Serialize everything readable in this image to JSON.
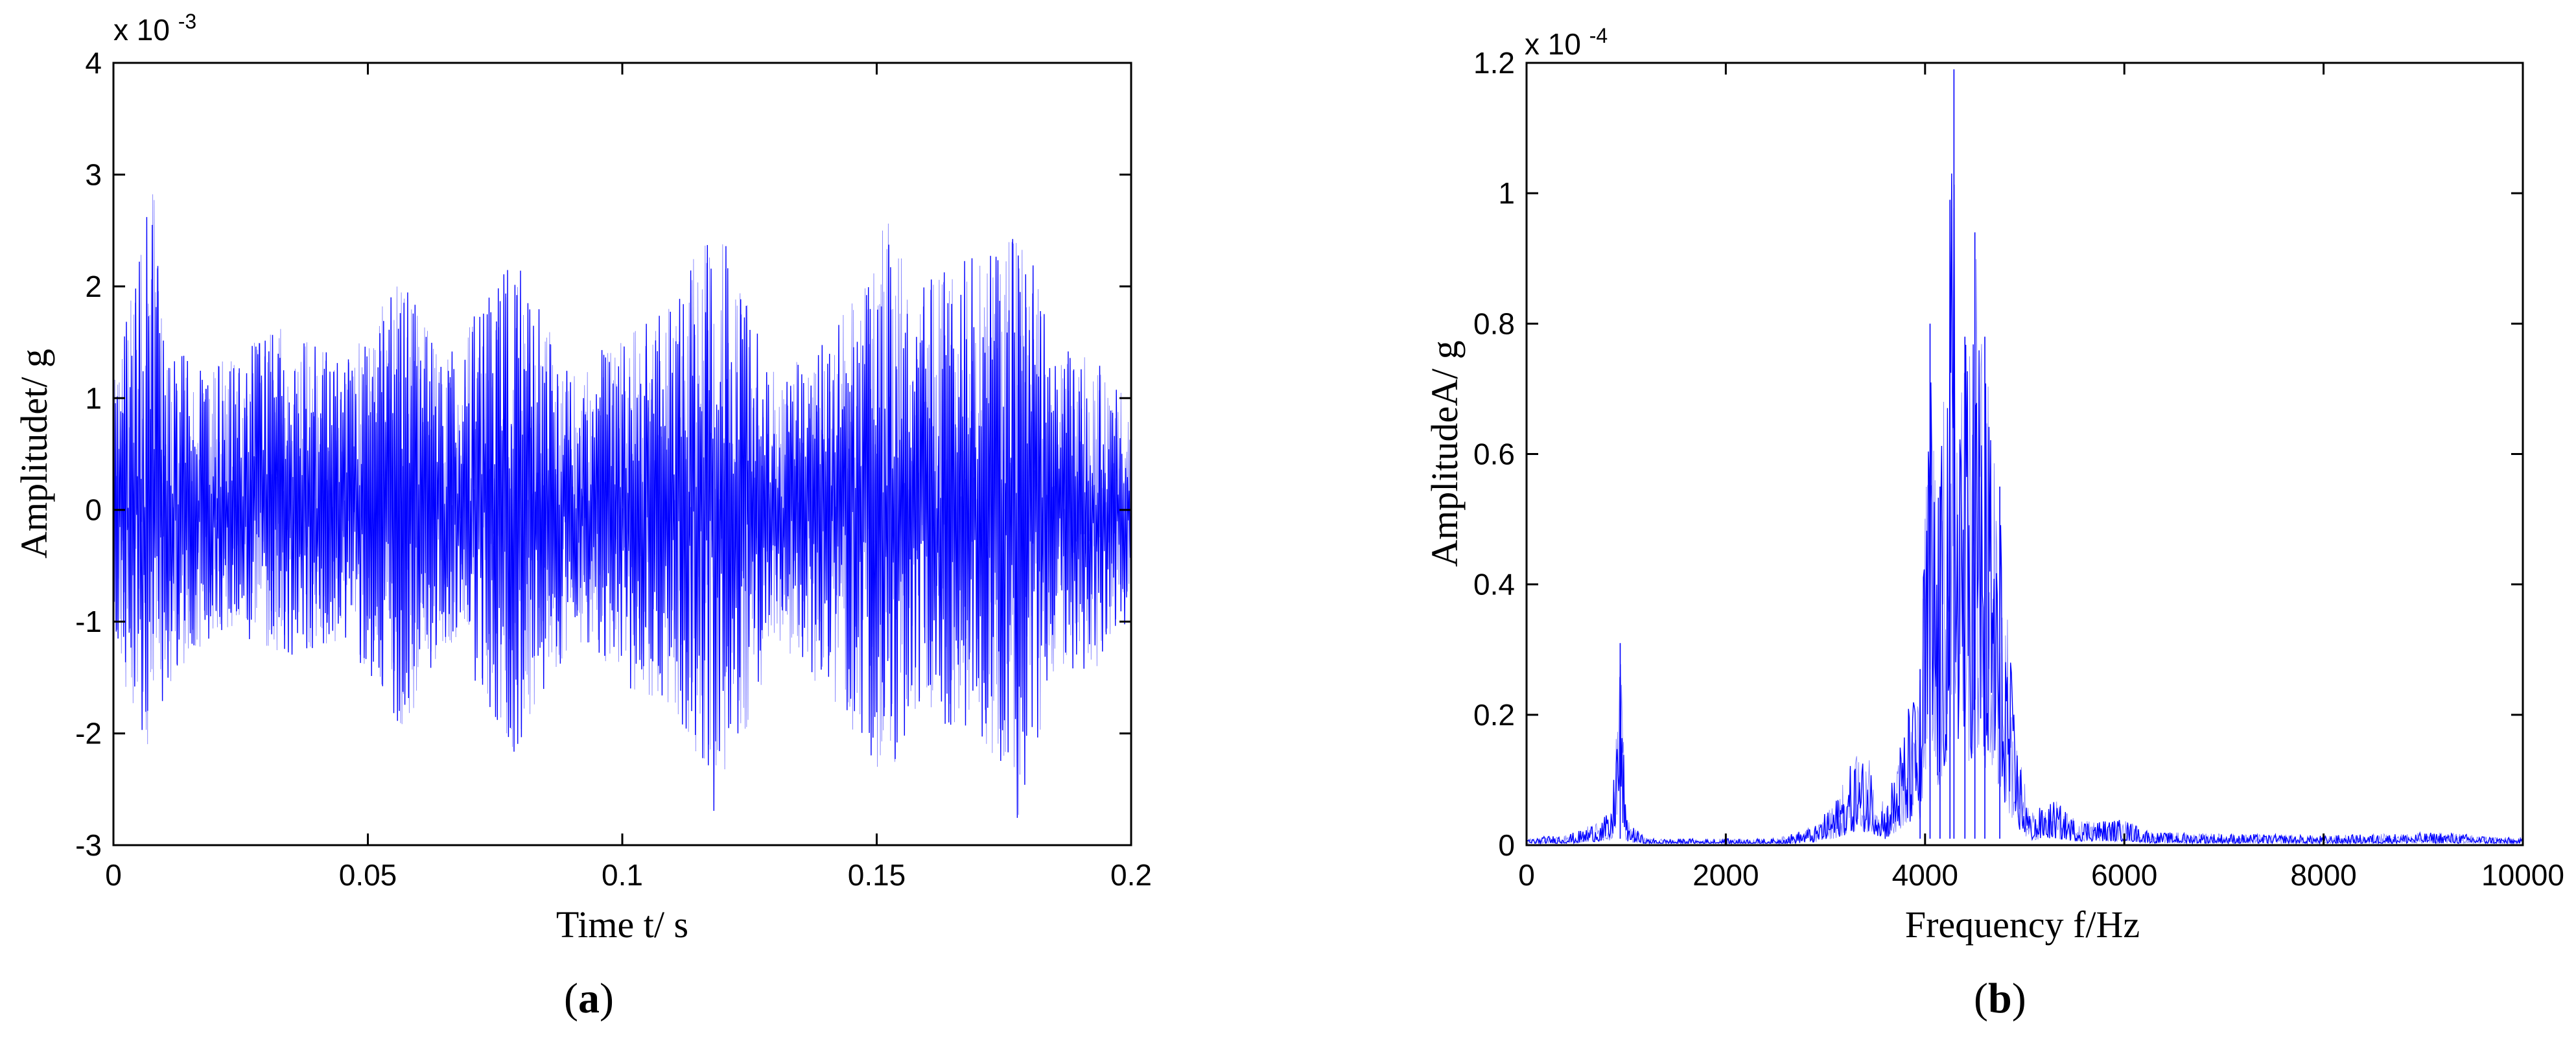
{
  "chart_data": [
    {
      "panel": "(a)",
      "panel_letter": "a",
      "type": "line",
      "xlabel": "Time t/ s",
      "ylabel": "Amplitudet/ g",
      "xlim": [
        0,
        0.2
      ],
      "ylim": [
        -3,
        4
      ],
      "y_exponent": "x 10",
      "y_exponent_power": "-3",
      "xticks": [
        "0",
        "0.05",
        "0.1",
        "0.15",
        "0.2"
      ],
      "yticks": [
        "-3",
        "-2",
        "-1",
        "0",
        "1",
        "2",
        "3",
        "4"
      ],
      "line_color": "#0000ff",
      "envelope_peaks": [
        {
          "t": 0.0,
          "hi": 1.1,
          "lo": -1.3
        },
        {
          "t": 0.008,
          "hi": 3.0,
          "lo": -2.6
        },
        {
          "t": 0.01,
          "hi": 1.5,
          "lo": -1.6
        },
        {
          "t": 0.02,
          "hi": 1.3,
          "lo": -1.1
        },
        {
          "t": 0.035,
          "hi": 1.7,
          "lo": -1.3
        },
        {
          "t": 0.045,
          "hi": 1.3,
          "lo": -1.2
        },
        {
          "t": 0.057,
          "hi": 2.1,
          "lo": -2.0
        },
        {
          "t": 0.065,
          "hi": 1.4,
          "lo": -1.2
        },
        {
          "t": 0.079,
          "hi": 2.3,
          "lo": -2.2
        },
        {
          "t": 0.09,
          "hi": 1.2,
          "lo": -1.2
        },
        {
          "t": 0.1,
          "hi": 1.6,
          "lo": -1.6
        },
        {
          "t": 0.11,
          "hi": 1.9,
          "lo": -1.8
        },
        {
          "t": 0.118,
          "hi": 2.7,
          "lo": -2.7
        },
        {
          "t": 0.13,
          "hi": 1.2,
          "lo": -1.3
        },
        {
          "t": 0.14,
          "hi": 1.5,
          "lo": -1.6
        },
        {
          "t": 0.152,
          "hi": 2.6,
          "lo": -2.5
        },
        {
          "t": 0.158,
          "hi": 2.0,
          "lo": -1.8
        },
        {
          "t": 0.17,
          "hi": 2.3,
          "lo": -2.1
        },
        {
          "t": 0.178,
          "hi": 2.7,
          "lo": -2.8
        },
        {
          "t": 0.185,
          "hi": 1.4,
          "lo": -1.4
        },
        {
          "t": 0.192,
          "hi": 1.5,
          "lo": -1.5
        },
        {
          "t": 0.2,
          "hi": 0.9,
          "lo": -1.0
        }
      ]
    },
    {
      "panel": "(b)",
      "panel_letter": "b",
      "type": "line",
      "xlabel": "Frequency f/Hz",
      "ylabel": "AmplitudeA/ g",
      "xlim": [
        0,
        10000
      ],
      "ylim": [
        0,
        1.2
      ],
      "y_exponent": "x 10",
      "y_exponent_power": "-4",
      "xticks": [
        "0",
        "2000",
        "4000",
        "6000",
        "8000",
        "10000"
      ],
      "yticks": [
        "0",
        "0.2",
        "0.4",
        "0.6",
        "0.8",
        "1",
        "1.2"
      ],
      "line_color": "#0000ff",
      "spectrum_envelope": [
        {
          "f": 0,
          "a": 0.01
        },
        {
          "f": 500,
          "a": 0.02
        },
        {
          "f": 850,
          "a": 0.05
        },
        {
          "f": 940,
          "a": 0.31
        },
        {
          "f": 1000,
          "a": 0.04
        },
        {
          "f": 1200,
          "a": 0.01
        },
        {
          "f": 2500,
          "a": 0.01
        },
        {
          "f": 2900,
          "a": 0.03
        },
        {
          "f": 3100,
          "a": 0.07
        },
        {
          "f": 3300,
          "a": 0.14
        },
        {
          "f": 3450,
          "a": 0.13
        },
        {
          "f": 3600,
          "a": 0.06
        },
        {
          "f": 3800,
          "a": 0.2
        },
        {
          "f": 3950,
          "a": 0.27
        },
        {
          "f": 4050,
          "a": 0.8
        },
        {
          "f": 4150,
          "a": 0.55
        },
        {
          "f": 4250,
          "a": 0.99
        },
        {
          "f": 4290,
          "a": 1.19
        },
        {
          "f": 4400,
          "a": 0.78
        },
        {
          "f": 4500,
          "a": 0.94
        },
        {
          "f": 4600,
          "a": 0.78
        },
        {
          "f": 4750,
          "a": 0.55
        },
        {
          "f": 4900,
          "a": 0.19
        },
        {
          "f": 5050,
          "a": 0.05
        },
        {
          "f": 5300,
          "a": 0.07
        },
        {
          "f": 5500,
          "a": 0.04
        },
        {
          "f": 6000,
          "a": 0.04
        },
        {
          "f": 6300,
          "a": 0.02
        },
        {
          "f": 8000,
          "a": 0.015
        },
        {
          "f": 9200,
          "a": 0.02
        },
        {
          "f": 10000,
          "a": 0.01
        }
      ]
    }
  ]
}
